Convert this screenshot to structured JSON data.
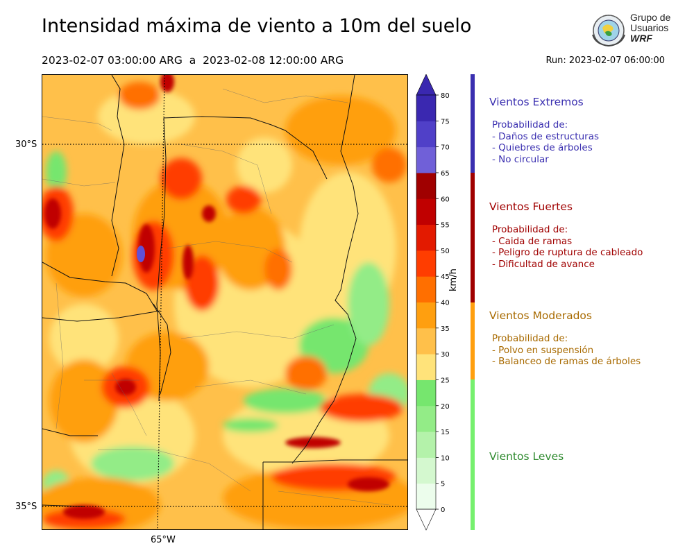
{
  "header": {
    "title": "Intensidad máxima de viento a 10m del suelo",
    "period_start": "2023-02-07 03:00:00 ARG",
    "period_sep": "a",
    "period_end": "2023-02-08 12:00:00 ARG",
    "run": "Run: 2023-02-07 06:00:00"
  },
  "logo": {
    "line1": "Grupo de",
    "line2": "Usuarios",
    "line3": "WRF"
  },
  "map": {
    "lat_labels": [
      "30°S",
      "35°S"
    ],
    "lon_labels": [
      "65°W"
    ]
  },
  "colorbar": {
    "unit": "km/h",
    "ticks": [
      "0",
      "5",
      "10",
      "15",
      "20",
      "25",
      "30",
      "35",
      "40",
      "45",
      "50",
      "55",
      "60",
      "65",
      "70",
      "75",
      "80"
    ],
    "colors": [
      "#ecfdec",
      "#d4f8cf",
      "#b4f2aa",
      "#93ec87",
      "#76e66e",
      "#ffe37a",
      "#ffc04a",
      "#ff9f0f",
      "#ff6f00",
      "#ff3d00",
      "#e31a00",
      "#c00000",
      "#a00000",
      "#7060d8",
      "#5040c8",
      "#3a28b0"
    ],
    "under_color": "#ffffff",
    "over_color": "#3a28b0"
  },
  "categories": [
    {
      "title": "Vientos Extremos",
      "color": "#3a2fb0",
      "bar_color": "#3a2fb0",
      "desc": [
        "Probabilidad de:",
        "- Daños de estructuras",
        "- Quiebres de árboles",
        "- No circular"
      ]
    },
    {
      "title": "Vientos Fuertes",
      "color": "#a00000",
      "bar_color": "#a00000",
      "desc": [
        "Probabilidad de:",
        "- Caida de ramas",
        "- Peligro de ruptura de cableado",
        "- Dificultad de avance"
      ]
    },
    {
      "title": "Vientos Moderados",
      "color": "#a86a00",
      "bar_color": "#ff9f0f",
      "desc": [
        "Probabilidad de:",
        "- Polvo en suspensión",
        "- Balanceo de ramas de árboles"
      ]
    },
    {
      "title": "Vientos Leves",
      "color": "#2e8a2e",
      "bar_color": "#76f06e",
      "desc": []
    }
  ]
}
